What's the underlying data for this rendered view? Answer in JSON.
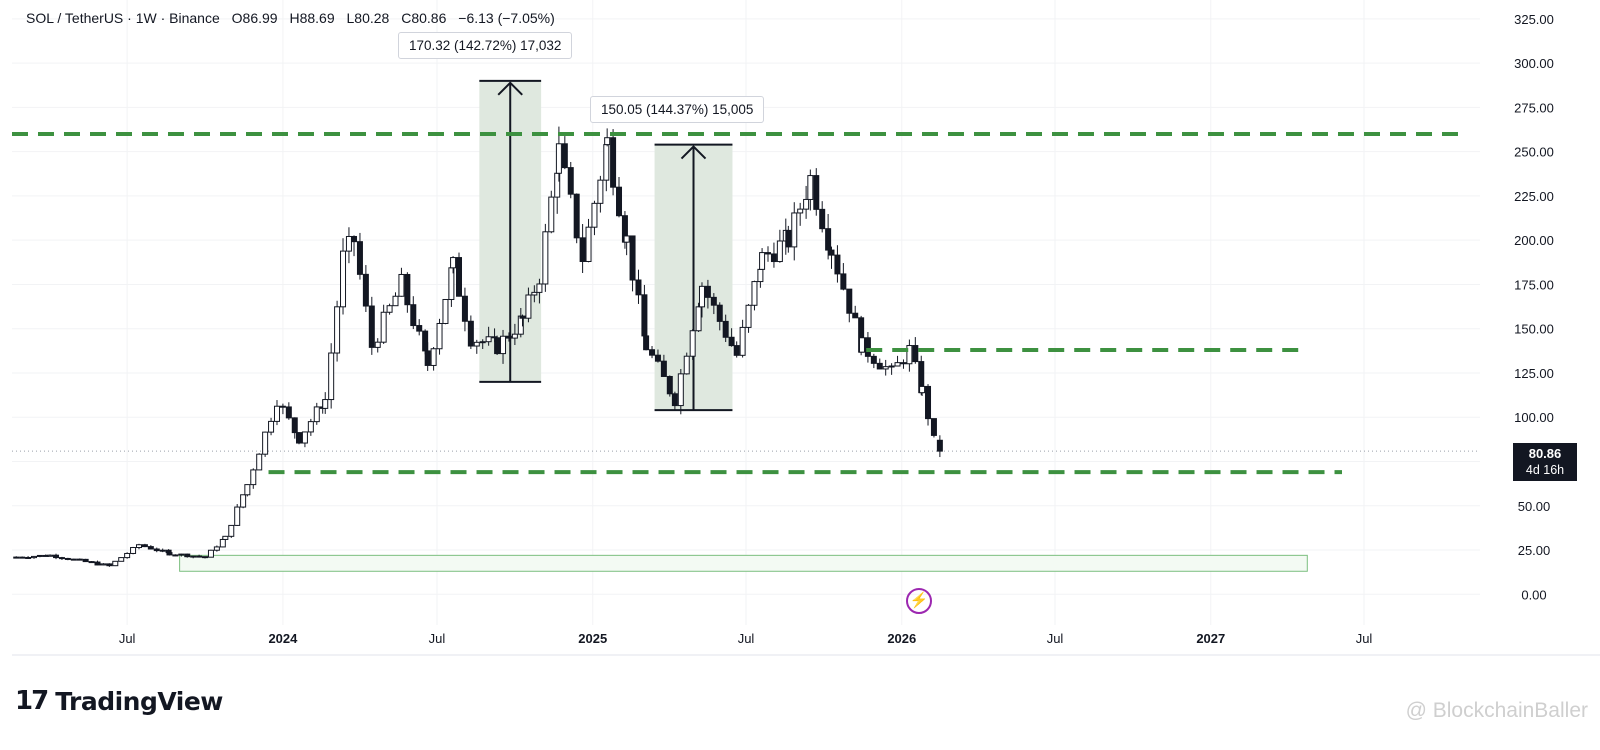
{
  "header": {
    "symbol": "SOL / TetherUS · 1W · Binance",
    "open": "O86.99",
    "high": "H88.69",
    "low": "L80.28",
    "close": "C80.86",
    "change": "−6.13 (−7.05%)"
  },
  "measure_labels": [
    "170.32 (142.72%) 17,032",
    "150.05 (144.37%) 15,005"
  ],
  "price_tag": {
    "price": "80.86",
    "countdown": "4d 16h"
  },
  "brand": {
    "logo_mark": "17",
    "name": "TradingView"
  },
  "watermark": "@ BlockchainBaller",
  "colors": {
    "up": "#ffffff",
    "down": "#131722",
    "level": "#3d9140",
    "measure_fill": "#dfe8df",
    "zone_stroke": "#7bbf7f"
  },
  "chart_data": {
    "type": "candlestick",
    "title": "SOL / TetherUS · 1W · Binance",
    "xlabel": "",
    "ylabel": "",
    "ylim": [
      -10,
      330
    ],
    "y_ticks": [
      0,
      25,
      50,
      75,
      100,
      125,
      150,
      175,
      200,
      225,
      250,
      275,
      300,
      325
    ],
    "y_tick_labels": [
      "0.00",
      "25.00",
      "50.00",
      "75.00",
      "100.00",
      "125.00",
      "150.00",
      "175.00",
      "200.00",
      "225.00",
      "250.00",
      "275.00",
      "300.00",
      "325.00"
    ],
    "x_ticks": [
      {
        "label": "Jul",
        "date": "2023-07-01"
      },
      {
        "label": "2024",
        "date": "2024-01-01",
        "bold": true
      },
      {
        "label": "Jul",
        "date": "2024-07-01"
      },
      {
        "label": "2025",
        "date": "2025-01-01",
        "bold": true
      },
      {
        "label": "Jul",
        "date": "2025-07-01"
      },
      {
        "label": "2026",
        "date": "2026-01-01",
        "bold": true
      },
      {
        "label": "Jul",
        "date": "2026-07-01"
      },
      {
        "label": "2027",
        "date": "2027-01-01",
        "bold": true
      },
      {
        "label": "Jul",
        "date": "2027-07-01"
      }
    ],
    "x_range": [
      "2023-02-15",
      "2027-11-15"
    ],
    "last_price": 80.86,
    "grid": true,
    "levels": [
      {
        "value": 260,
        "from": "2023-02-15",
        "to": "2027-10-20"
      },
      {
        "value": 138,
        "from": "2025-11-20",
        "to": "2027-04-25"
      },
      {
        "value": 69,
        "from": "2023-12-15",
        "to": "2027-06-05"
      }
    ],
    "zones": [
      {
        "from": "2023-09-01",
        "to": "2027-04-25",
        "low": 13,
        "high": 22
      }
    ],
    "measures": [
      {
        "from": "2024-08-20",
        "to": "2024-11-01",
        "low": 120,
        "high": 290
      },
      {
        "from": "2025-03-15",
        "to": "2025-06-15",
        "low": 104,
        "high": 254
      }
    ],
    "key_points": [
      {
        "date": "2023-02-20",
        "close": 21
      },
      {
        "date": "2023-04-01",
        "close": 22
      },
      {
        "date": "2023-06-10",
        "close": 16
      },
      {
        "date": "2023-07-15",
        "close": 28
      },
      {
        "date": "2023-08-20",
        "close": 23
      },
      {
        "date": "2023-10-01",
        "close": 21
      },
      {
        "date": "2023-10-25",
        "close": 32
      },
      {
        "date": "2023-11-20",
        "close": 62
      },
      {
        "date": "2023-12-25",
        "close": 110
      },
      {
        "date": "2024-01-20",
        "close": 88
      },
      {
        "date": "2024-02-20",
        "close": 110
      },
      {
        "date": "2024-03-12",
        "close": 190
      },
      {
        "date": "2024-03-25",
        "close": 200
      },
      {
        "date": "2024-04-15",
        "close": 140
      },
      {
        "date": "2024-05-20",
        "close": 175
      },
      {
        "date": "2024-06-20",
        "close": 130
      },
      {
        "date": "2024-07-20",
        "close": 185
      },
      {
        "date": "2024-08-10",
        "close": 145
      },
      {
        "date": "2024-09-10",
        "close": 140
      },
      {
        "date": "2024-10-10",
        "close": 155
      },
      {
        "date": "2024-10-30",
        "close": 180
      },
      {
        "date": "2024-11-22",
        "close": 250
      },
      {
        "date": "2024-12-20",
        "close": 190
      },
      {
        "date": "2025-01-18",
        "close": 255
      },
      {
        "date": "2025-02-10",
        "close": 200
      },
      {
        "date": "2025-03-05",
        "close": 140
      },
      {
        "date": "2025-04-08",
        "close": 110
      },
      {
        "date": "2025-05-10",
        "close": 175
      },
      {
        "date": "2025-06-20",
        "close": 135
      },
      {
        "date": "2025-07-20",
        "close": 190
      },
      {
        "date": "2025-08-20",
        "close": 200
      },
      {
        "date": "2025-09-15",
        "close": 235
      },
      {
        "date": "2025-10-10",
        "close": 195
      },
      {
        "date": "2025-11-15",
        "close": 140
      },
      {
        "date": "2025-12-20",
        "close": 125
      },
      {
        "date": "2026-01-10",
        "close": 138
      },
      {
        "date": "2026-01-25",
        "close": 115
      },
      {
        "date": "2026-02-08",
        "close": 86.99
      },
      {
        "date": "2026-02-15",
        "close": 80.86
      }
    ]
  }
}
